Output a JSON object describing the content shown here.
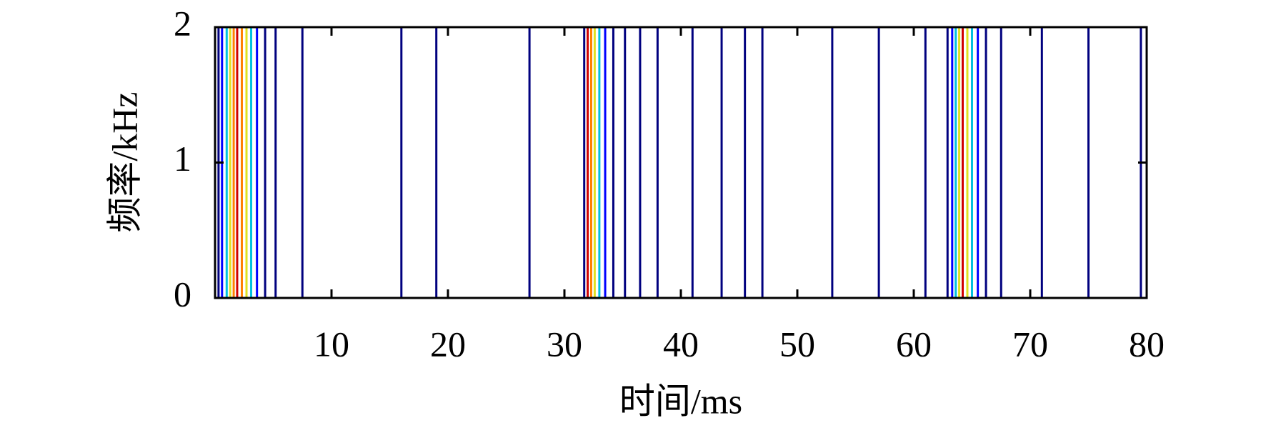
{
  "chart_data": {
    "type": "contour",
    "x_label": "时间/ms",
    "y_label": "频率/kHz",
    "xlim": [
      0,
      80
    ],
    "ylim": [
      0,
      2
    ],
    "xticks": [
      10,
      20,
      30,
      40,
      50,
      60,
      70,
      80
    ],
    "yticks": [
      0,
      1,
      2
    ],
    "contours": [
      {
        "color": "#00007f",
        "x": [
          0.3,
          4.3,
          5.2,
          7.5,
          16,
          19,
          27,
          31.7,
          34.2,
          35.2,
          36.5,
          38,
          41,
          43.5,
          45.5,
          47,
          53,
          57,
          61,
          62.9,
          66.2,
          67.5,
          71,
          75,
          79.5
        ]
      },
      {
        "color": "#0000ff",
        "x": [
          0.6,
          3.6,
          33.5,
          63.3,
          65.5
        ]
      },
      {
        "color": "#00c0e0",
        "x": [
          1.0,
          3.1,
          33.0,
          63.6,
          65.0
        ]
      },
      {
        "color": "#e0e020",
        "x": [
          1.3,
          2.7,
          32.6,
          63.9,
          64.6
        ]
      },
      {
        "color": "#ff8000",
        "x": [
          1.6,
          2.3,
          32.3
        ]
      },
      {
        "color": "#d00000",
        "x": [
          1.9,
          32.0,
          64.2
        ]
      }
    ]
  }
}
